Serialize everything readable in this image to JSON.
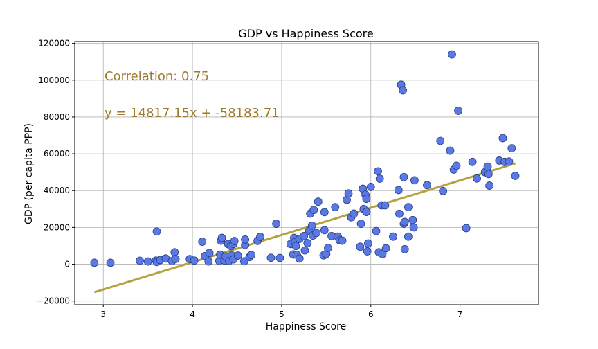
{
  "chart_data": {
    "type": "scatter",
    "title": "GDP vs Happiness Score",
    "xlabel": "Happiness Score",
    "ylabel": "GDP (per capita PPP)",
    "xlim": [
      2.68,
      7.88
    ],
    "ylim": [
      -22000,
      121000
    ],
    "xticks": [
      3,
      4,
      5,
      6,
      7
    ],
    "yticks": [
      -20000,
      0,
      20000,
      40000,
      60000,
      80000,
      100000,
      120000
    ],
    "xtick_labels": [
      "3",
      "4",
      "5",
      "6",
      "7"
    ],
    "ytick_labels": [
      "−20000",
      "0",
      "20000",
      "40000",
      "60000",
      "80000",
      "100000",
      "120000"
    ],
    "grid": true,
    "annotations": {
      "correlation": "Correlation:  0.75",
      "equation": "y = 14817.15x + -58183.71"
    },
    "regression": {
      "slope": 14817.15,
      "intercept": -58183.71,
      "x_range": [
        2.9,
        7.62
      ]
    },
    "colors": {
      "points": "#5a78e6",
      "point_edge": "#27407f",
      "line": "#b5a23e",
      "annotation": "#9e7a2c"
    },
    "series": [
      {
        "points": [
          [
            2.9,
            800
          ],
          [
            3.08,
            800
          ],
          [
            3.41,
            1900
          ],
          [
            3.5,
            1500
          ],
          [
            3.59,
            2000
          ],
          [
            3.6,
            1200
          ],
          [
            3.6,
            17800
          ],
          [
            3.64,
            2300
          ],
          [
            3.7,
            3100
          ],
          [
            3.77,
            1700
          ],
          [
            3.8,
            6500
          ],
          [
            3.81,
            2800
          ],
          [
            3.97,
            2800
          ],
          [
            4.02,
            2000
          ],
          [
            4.11,
            12200
          ],
          [
            4.14,
            4400
          ],
          [
            4.18,
            1500
          ],
          [
            4.19,
            6100
          ],
          [
            4.3,
            1800
          ],
          [
            4.31,
            5200
          ],
          [
            4.32,
            12800
          ],
          [
            4.33,
            14300
          ],
          [
            4.36,
            2000
          ],
          [
            4.37,
            4200
          ],
          [
            4.4,
            11000
          ],
          [
            4.41,
            1800
          ],
          [
            4.43,
            9900
          ],
          [
            4.44,
            4800
          ],
          [
            4.46,
            2600
          ],
          [
            4.46,
            11000
          ],
          [
            4.47,
            12600
          ],
          [
            4.51,
            4700
          ],
          [
            4.58,
            1600
          ],
          [
            4.59,
            10500
          ],
          [
            4.59,
            13400
          ],
          [
            4.64,
            3900
          ],
          [
            4.66,
            5000
          ],
          [
            4.73,
            12700
          ],
          [
            4.76,
            14900
          ],
          [
            4.88,
            3500
          ],
          [
            4.94,
            22000
          ],
          [
            4.98,
            3400
          ],
          [
            5.1,
            11000
          ],
          [
            5.13,
            5300
          ],
          [
            5.14,
            14300
          ],
          [
            5.15,
            12000
          ],
          [
            5.16,
            9900
          ],
          [
            5.17,
            5100
          ],
          [
            5.2,
            13700
          ],
          [
            5.2,
            3100
          ],
          [
            5.25,
            15300
          ],
          [
            5.26,
            7500
          ],
          [
            5.29,
            11500
          ],
          [
            5.31,
            18200
          ],
          [
            5.32,
            27500
          ],
          [
            5.34,
            21000
          ],
          [
            5.35,
            15600
          ],
          [
            5.36,
            29500
          ],
          [
            5.39,
            17000
          ],
          [
            5.41,
            34000
          ],
          [
            5.47,
            4800
          ],
          [
            5.48,
            18500
          ],
          [
            5.48,
            28300
          ],
          [
            5.5,
            5600
          ],
          [
            5.52,
            8800
          ],
          [
            5.56,
            15300
          ],
          [
            5.6,
            31000
          ],
          [
            5.63,
            15000
          ],
          [
            5.65,
            13000
          ],
          [
            5.68,
            12800
          ],
          [
            5.73,
            35000
          ],
          [
            5.75,
            38500
          ],
          [
            5.78,
            25500
          ],
          [
            5.81,
            27500
          ],
          [
            5.88,
            9500
          ],
          [
            5.89,
            22000
          ],
          [
            5.91,
            41000
          ],
          [
            5.92,
            30000
          ],
          [
            5.94,
            37800
          ],
          [
            5.95,
            35500
          ],
          [
            5.95,
            28400
          ],
          [
            5.96,
            7000
          ],
          [
            5.97,
            11300
          ],
          [
            6.0,
            42000
          ],
          [
            6.06,
            18000
          ],
          [
            6.08,
            50500
          ],
          [
            6.09,
            6500
          ],
          [
            6.1,
            46500
          ],
          [
            6.12,
            32000
          ],
          [
            6.13,
            5600
          ],
          [
            6.16,
            32000
          ],
          [
            6.17,
            8700
          ],
          [
            6.25,
            15000
          ],
          [
            6.31,
            40300
          ],
          [
            6.32,
            27400
          ],
          [
            6.34,
            97500
          ],
          [
            6.36,
            94500
          ],
          [
            6.37,
            47300
          ],
          [
            6.37,
            22000
          ],
          [
            6.38,
            8200
          ],
          [
            6.38,
            23000
          ],
          [
            6.42,
            31000
          ],
          [
            6.42,
            15000
          ],
          [
            6.47,
            24000
          ],
          [
            6.48,
            20000
          ],
          [
            6.49,
            45600
          ],
          [
            6.63,
            43000
          ],
          [
            6.78,
            67000
          ],
          [
            6.81,
            39800
          ],
          [
            6.89,
            61700
          ],
          [
            6.91,
            114000
          ],
          [
            6.93,
            51400
          ],
          [
            6.96,
            53500
          ],
          [
            6.98,
            83400
          ],
          [
            7.07,
            19600
          ],
          [
            7.14,
            55600
          ],
          [
            7.19,
            46600
          ],
          [
            7.28,
            50000
          ],
          [
            7.31,
            53000
          ],
          [
            7.32,
            49000
          ],
          [
            7.33,
            42700
          ],
          [
            7.44,
            56300
          ],
          [
            7.48,
            68500
          ],
          [
            7.5,
            55600
          ],
          [
            7.55,
            55800
          ],
          [
            7.58,
            63000
          ],
          [
            7.62,
            48000
          ]
        ]
      }
    ]
  }
}
